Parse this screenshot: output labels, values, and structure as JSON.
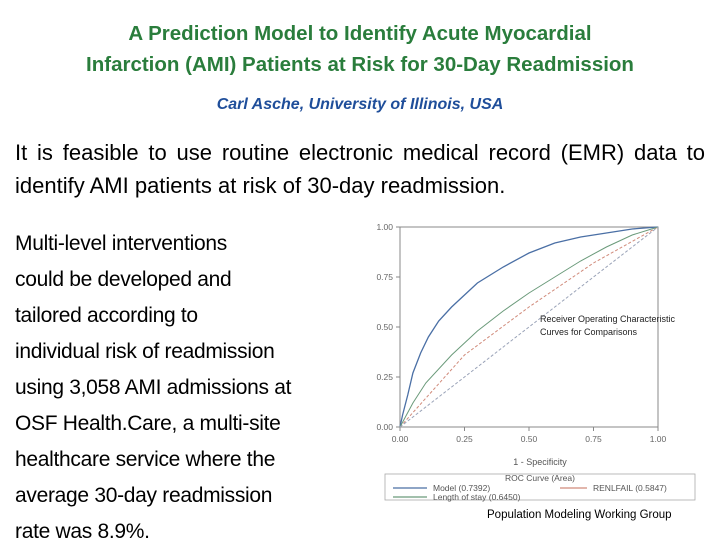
{
  "slide": {
    "title_line1": "A Prediction Model to Identify Acute Myocardial",
    "title_line2": "Infarction (AMI) Patients at Risk for 30-Day Readmission",
    "author": "Carl Asche, University of Illinois, USA",
    "lead_text": "It is feasible to use routine electronic medical record (EMR) data to identify AMI patients at risk of 30-day readmission.",
    "body_lines": [
      "Multi-level interventions",
      "could be developed and",
      "tailored according to",
      "individual risk of readmission",
      "using 3,058 AMI admissions at",
      "OSF Health.Care, a multi-site",
      "healthcare service where the",
      "average 30-day readmission",
      "rate was 8.9%."
    ],
    "footer": "Population Modeling Working Group"
  },
  "chart_data": {
    "type": "line",
    "annotation_line1": "Receiver Operating Characteristic",
    "annotation_line2": "Curves for Comparisons",
    "xlabel": "1 - Specificity",
    "ylabel": "",
    "xlim": [
      0,
      1
    ],
    "ylim": [
      0,
      1
    ],
    "x_ticks": [
      "0.00",
      "0.25",
      "0.50",
      "0.75",
      "1.00"
    ],
    "y_ticks": [
      "0.00",
      "0.25",
      "0.50",
      "0.75",
      "1.00"
    ],
    "legend_title": "ROC Curve (Area)",
    "series": [
      {
        "name": "Model (0.7392)",
        "color": "#4a6fa5",
        "points": [
          [
            0,
            0
          ],
          [
            0.01,
            0.06
          ],
          [
            0.03,
            0.16
          ],
          [
            0.05,
            0.27
          ],
          [
            0.08,
            0.37
          ],
          [
            0.11,
            0.45
          ],
          [
            0.15,
            0.53
          ],
          [
            0.2,
            0.6
          ],
          [
            0.25,
            0.66
          ],
          [
            0.3,
            0.72
          ],
          [
            0.4,
            0.8
          ],
          [
            0.5,
            0.87
          ],
          [
            0.6,
            0.92
          ],
          [
            0.7,
            0.95
          ],
          [
            0.8,
            0.97
          ],
          [
            0.9,
            0.99
          ],
          [
            1,
            1
          ]
        ]
      },
      {
        "name": "RENLFAIL (0.5847)",
        "color": "#d08a7a",
        "points": [
          [
            0,
            0
          ],
          [
            0.25,
            0.36
          ],
          [
            0.5,
            0.6
          ],
          [
            0.75,
            0.82
          ],
          [
            1,
            1
          ]
        ]
      },
      {
        "name": "Length of stay (0.6450)",
        "color": "#6a9a7a",
        "points": [
          [
            0,
            0
          ],
          [
            0.05,
            0.12
          ],
          [
            0.1,
            0.22
          ],
          [
            0.2,
            0.36
          ],
          [
            0.3,
            0.48
          ],
          [
            0.4,
            0.58
          ],
          [
            0.5,
            0.67
          ],
          [
            0.6,
            0.75
          ],
          [
            0.7,
            0.83
          ],
          [
            0.8,
            0.9
          ],
          [
            0.9,
            0.96
          ],
          [
            1,
            1
          ]
        ]
      },
      {
        "name": "",
        "color": "#9aa3b8",
        "points": [
          [
            0,
            0
          ],
          [
            1,
            1
          ]
        ]
      }
    ]
  }
}
